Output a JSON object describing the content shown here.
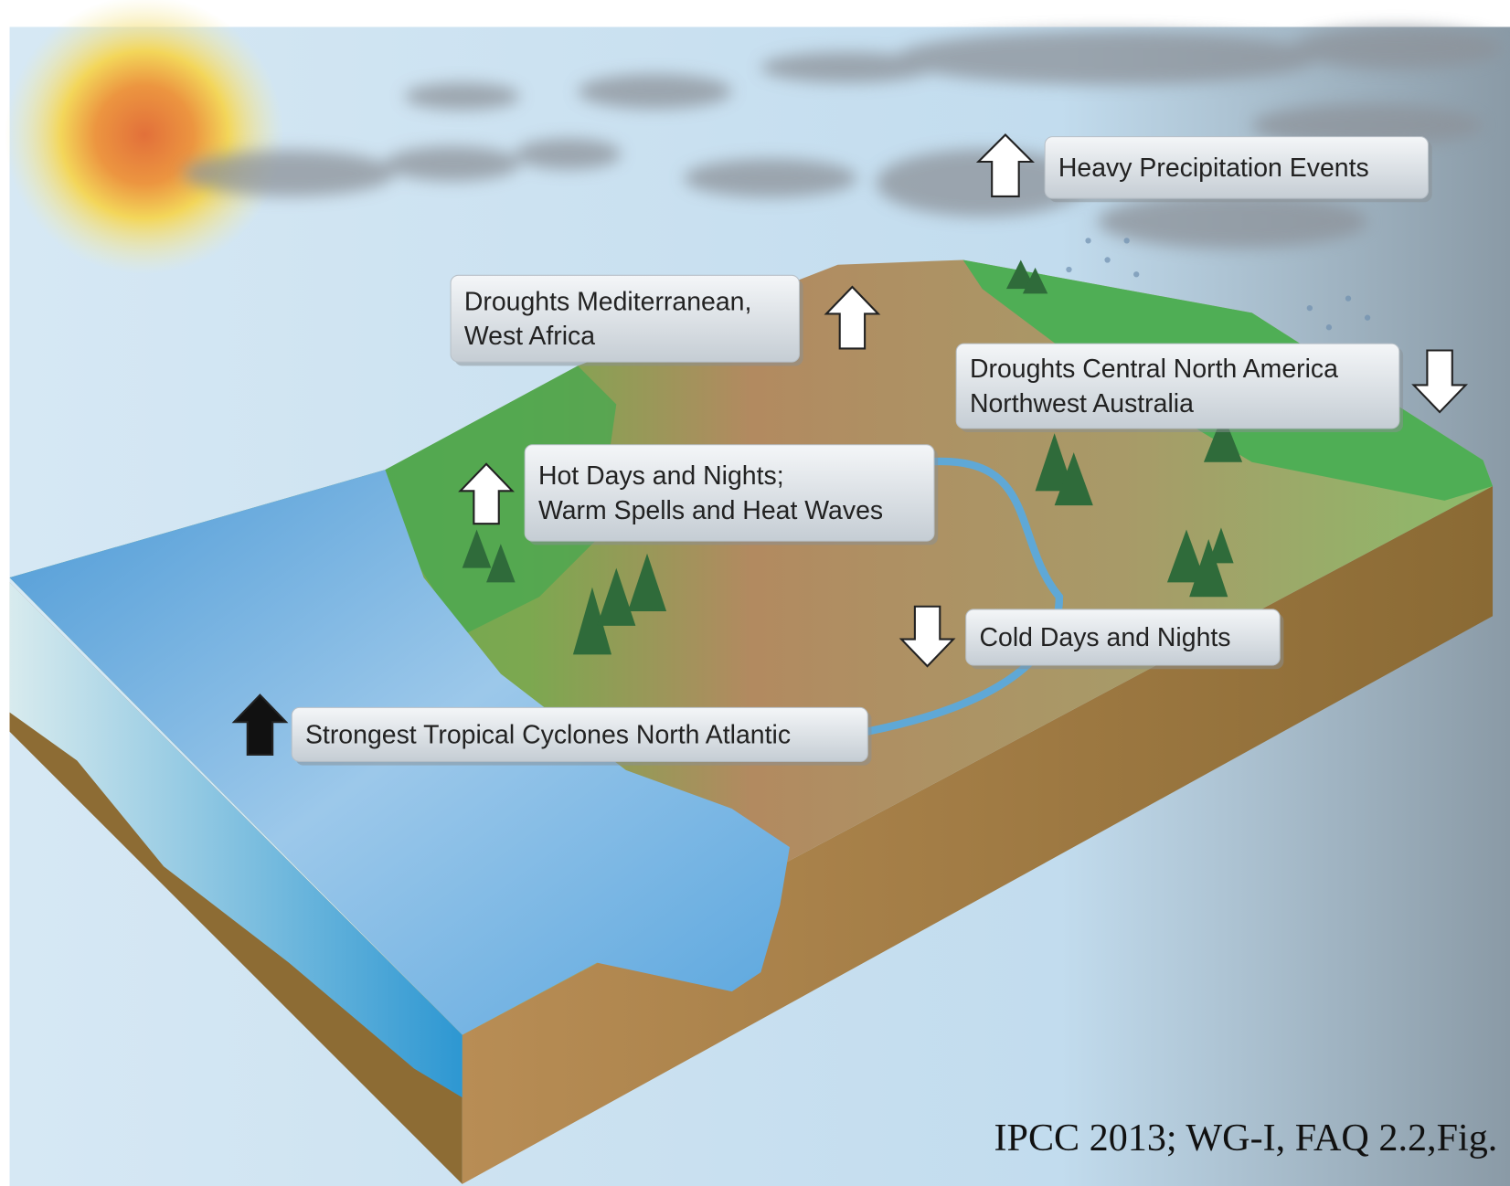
{
  "labels": [
    {
      "lines": [
        "Heavy Precipitation Events"
      ]
    },
    {
      "lines": [
        "Droughts Mediterranean,",
        "West Africa"
      ]
    },
    {
      "lines": [
        "Droughts Central North America",
        "Northwest Australia"
      ]
    },
    {
      "lines": [
        "Hot Days and Nights;",
        "Warm Spells and Heat Waves"
      ]
    },
    {
      "lines": [
        "Cold Days and Nights"
      ]
    },
    {
      "lines": [
        "Strongest Tropical Cyclones North Atlantic"
      ]
    }
  ],
  "source": "IPCC 2013; WG-I, FAQ 2.2,Fig."
}
